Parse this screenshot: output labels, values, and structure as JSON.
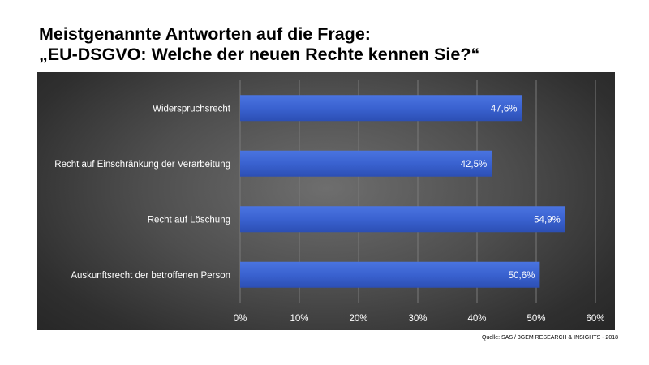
{
  "title": {
    "line1": "Meistgenannte Antworten auf die Frage:",
    "line2": "„EU-DSGVO: Welche der neuen Rechte kennen Sie?“"
  },
  "source": "Quelle: SAS / 3GEM RESEARCH & INSIGHTS - 2018",
  "colors": {
    "bar": "#3a62d0",
    "gridline": "#7a7a7a",
    "background": "#3c3c3c"
  },
  "chart_data": {
    "type": "bar",
    "orientation": "horizontal",
    "categories": [
      "Widerspruchsrecht",
      "Recht auf Einschränkung der Verarbeitung",
      "Recht auf Löschung",
      "Auskunftsrecht der betroffenen Person"
    ],
    "values": [
      47.6,
      42.5,
      54.9,
      50.6
    ],
    "value_labels": [
      "47,6%",
      "42,5%",
      "54,9%",
      "50,6%"
    ],
    "xlim": [
      0,
      60
    ],
    "xticks": [
      0,
      10,
      20,
      30,
      40,
      50,
      60
    ],
    "xtick_labels": [
      "0%",
      "10%",
      "20%",
      "30%",
      "40%",
      "50%",
      "60%"
    ],
    "xlabel": "",
    "ylabel": "",
    "grid": true,
    "legend": "none"
  }
}
